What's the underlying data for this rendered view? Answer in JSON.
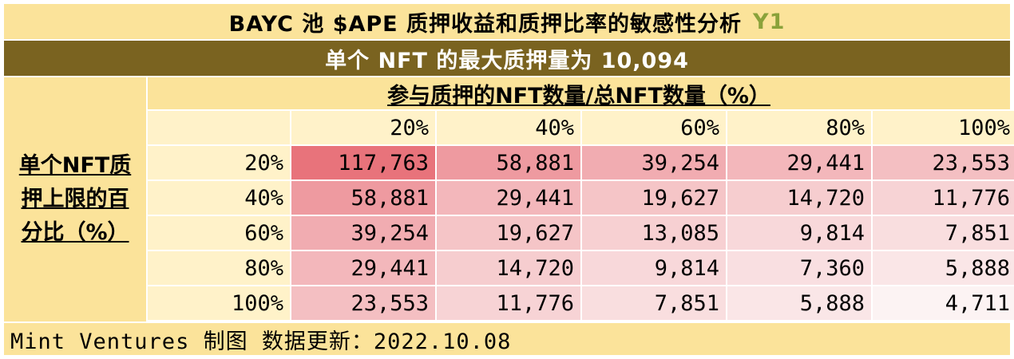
{
  "title": "BAYC 池 $APE 质押收益和质押比率的敏感性分析",
  "title_tag": "Y1",
  "subtitle": "单个 NFT 的最大质押量为 10,094",
  "row_axis_label": "单个NFT质押上限的百分比（%）",
  "col_axis_label": "参与质押的NFT数量/总NFT数量（%）",
  "footer": "Mint Ventures 制图 数据更新：2022.10.08",
  "colors": {
    "title_bg": "#fbe39a",
    "subtitle_bg": "#7a6320",
    "header_bg": "#fff2c9",
    "heat_max": "#e8737b",
    "heat_min": "#fcf3f3"
  },
  "chart_data": {
    "type": "heatmap",
    "title": "BAYC 池 $APE 质押收益和质押比率的敏感性分析",
    "xlabel": "参与质押的NFT数量/总NFT数量（%）",
    "ylabel": "单个NFT质押上限的百分比（%）",
    "x": [
      "20%",
      "40%",
      "60%",
      "80%",
      "100%"
    ],
    "y": [
      "20%",
      "40%",
      "60%",
      "80%",
      "100%"
    ],
    "display": [
      [
        "117,763",
        "58,881",
        "39,254",
        "29,441",
        "23,553"
      ],
      [
        "58,881",
        "29,441",
        "19,627",
        "14,720",
        "11,776"
      ],
      [
        "39,254",
        "19,627",
        "13,085",
        "9,814",
        "7,851"
      ],
      [
        "29,441",
        "14,720",
        "9,814",
        "7,360",
        "5,888"
      ],
      [
        "23,553",
        "11,776",
        "7,851",
        "5,888",
        "4,711"
      ]
    ],
    "values": [
      [
        117763,
        58881,
        39254,
        29441,
        23553
      ],
      [
        58881,
        29441,
        19627,
        14720,
        11776
      ],
      [
        39254,
        19627,
        13085,
        9814,
        7851
      ],
      [
        29441,
        14720,
        9814,
        7360,
        5888
      ],
      [
        23553,
        11776,
        7851,
        5888,
        4711
      ]
    ]
  }
}
